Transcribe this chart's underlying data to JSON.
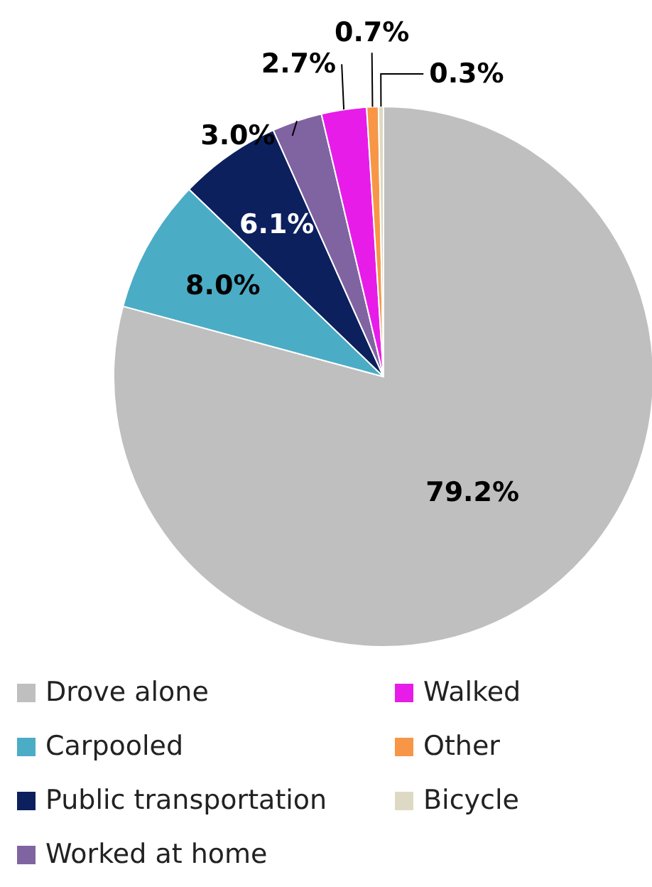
{
  "chart_data": {
    "type": "pie",
    "categories": [
      "Drove alone",
      "Carpooled",
      "Public transportation",
      "Worked at home",
      "Walked",
      "Other",
      "Bicycle"
    ],
    "values": [
      79.2,
      8.0,
      6.1,
      3.0,
      2.7,
      0.7,
      0.3
    ],
    "colors": [
      "#bfbfbf",
      "#4bacc6",
      "#0c205e",
      "#8064a2",
      "#e81ce8",
      "#f79646",
      "#ddd9c4"
    ],
    "value_labels": [
      "79.2%",
      "8.0%",
      "6.1%",
      "3.0%",
      "2.7%",
      "0.7%",
      "0.3%"
    ],
    "legend": "bottom"
  }
}
